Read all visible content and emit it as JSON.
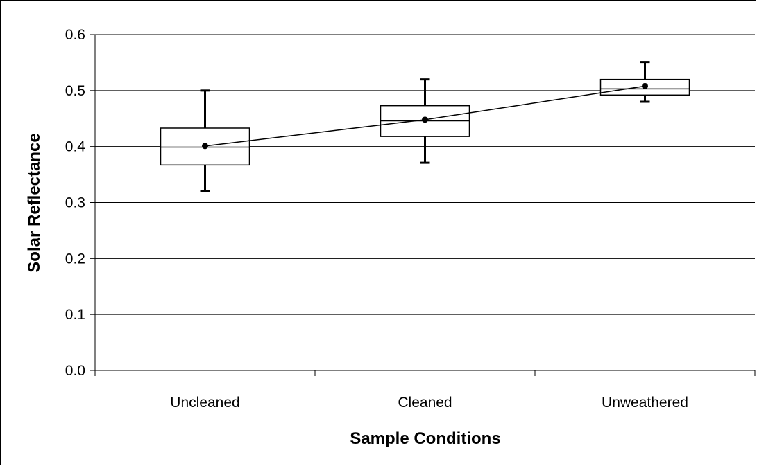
{
  "chart_data": {
    "type": "box",
    "xlabel": "Sample Conditions",
    "ylabel": "Solar Reflectance",
    "ylim": [
      0,
      0.6
    ],
    "yticks": [
      0,
      0.1,
      0.2,
      0.3,
      0.4,
      0.5,
      0.6
    ],
    "ytick_labels": [
      "0.0",
      "0.1",
      "0.2",
      "0.3",
      "0.4",
      "0.5",
      "0.6"
    ],
    "grid": "horizontal",
    "categories": [
      "Uncleaned",
      "Cleaned",
      "Unweathered"
    ],
    "boxes": [
      {
        "min": 0.32,
        "q1": 0.367,
        "median": 0.399,
        "q3": 0.433,
        "max": 0.5,
        "mean": 0.401
      },
      {
        "min": 0.371,
        "q1": 0.418,
        "median": 0.446,
        "q3": 0.473,
        "max": 0.52,
        "mean": 0.448
      },
      {
        "min": 0.48,
        "q1": 0.492,
        "median": 0.503,
        "q3": 0.52,
        "max": 0.551,
        "mean": 0.508
      }
    ],
    "mean_line": true
  }
}
